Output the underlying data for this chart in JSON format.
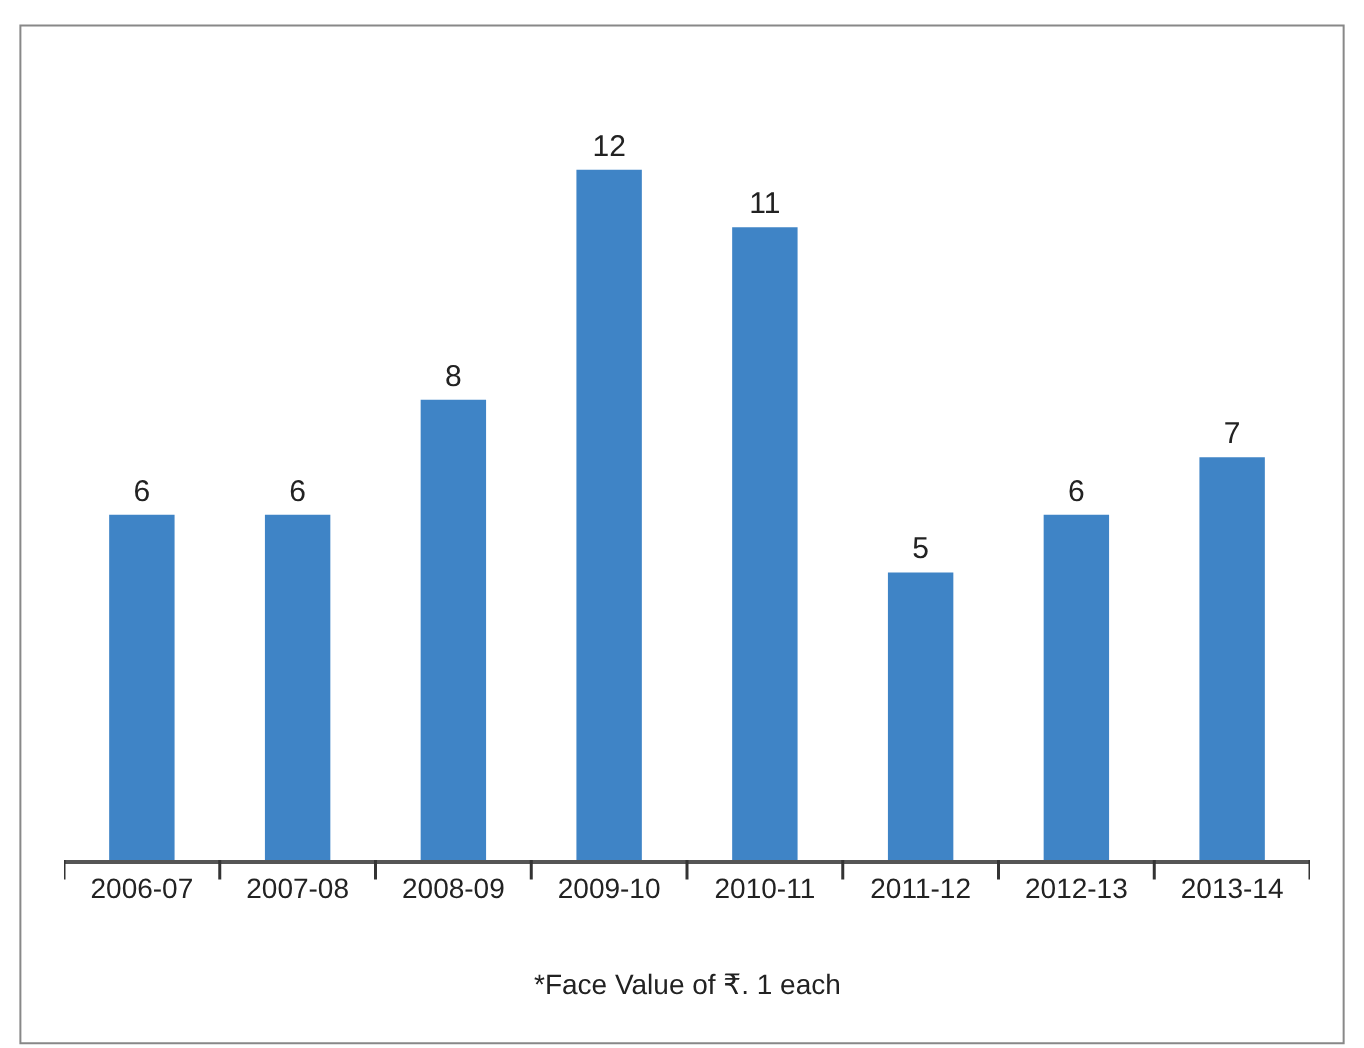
{
  "chart_data": {
    "type": "bar",
    "categories": [
      "2006-07",
      "2007-08",
      "2008-09",
      "2009-10",
      "2010-11",
      "2011-12",
      "2012-13",
      "2013-14"
    ],
    "values": [
      6,
      6,
      8,
      12,
      11,
      5,
      6,
      7
    ],
    "color": "#3f84c6",
    "data_labels": true,
    "tick_labels": "x",
    "annotations": [
      "*Face Value of ₹. 1 each"
    ]
  }
}
